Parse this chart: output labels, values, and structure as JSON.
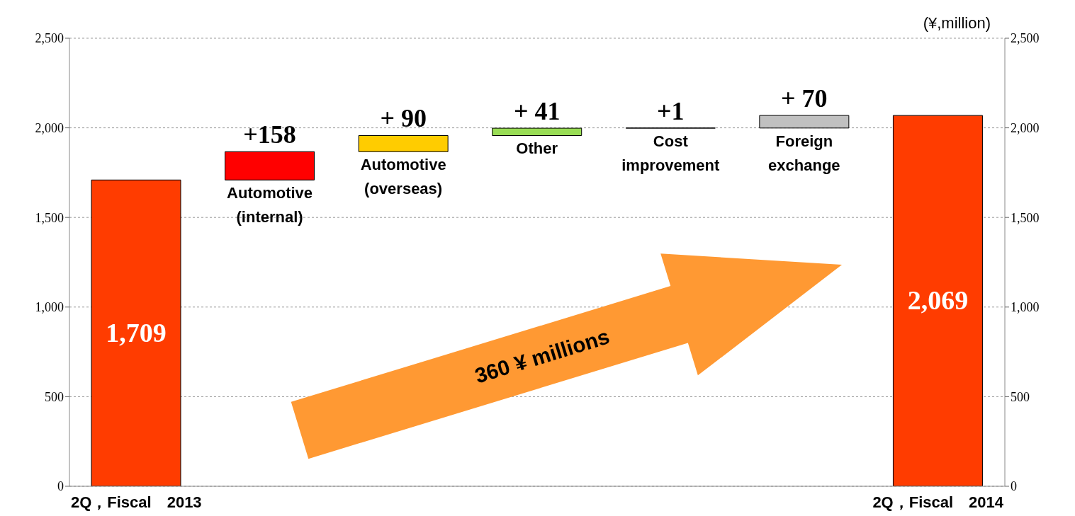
{
  "chart_data": {
    "type": "bar",
    "categories": [
      "2Q，Fiscal　2013",
      "Automotive (internal)",
      "Automotive (overseas)",
      "Other",
      "Cost improvement",
      "Foreign exchange",
      "2Q，Fiscal　2014"
    ],
    "values": [
      1709,
      158,
      90,
      41,
      1,
      70,
      2069
    ],
    "base": [
      0,
      1709,
      1867,
      1957,
      1998,
      1999,
      0
    ],
    "colors": [
      "#ff3c00",
      "#ff0000",
      "#ffcc00",
      "#99dd55",
      "#000000",
      "#c0c0c0",
      "#ff3c00"
    ],
    "value_labels": [
      "1,709",
      "+158",
      "+ 90",
      "+ 41",
      "+1",
      "+ 70",
      "2,069"
    ],
    "ylim": [
      0,
      2500
    ],
    "yticks": [
      {
        "value": 0,
        "label": "0"
      },
      {
        "value": 500,
        "label": "500"
      },
      {
        "value": 1000,
        "label": "1,000"
      },
      {
        "value": 1500,
        "label": "1,500"
      },
      {
        "value": 2000,
        "label": "2,000"
      },
      {
        "value": 2500,
        "label": "2,500"
      }
    ],
    "y2lim": [
      0,
      2500
    ],
    "y2ticks": [
      {
        "value": 0,
        "label": "0"
      },
      {
        "value": 500,
        "label": "500"
      },
      {
        "value": 1000,
        "label": "1,000"
      },
      {
        "value": 1500,
        "label": "1,500"
      },
      {
        "value": 2000,
        "label": "2,000"
      },
      {
        "value": 2500,
        "label": "2,500"
      }
    ],
    "grid": "y",
    "legend": false,
    "annotations": [
      "(¥,million)",
      "360 ¥ millions"
    ]
  }
}
